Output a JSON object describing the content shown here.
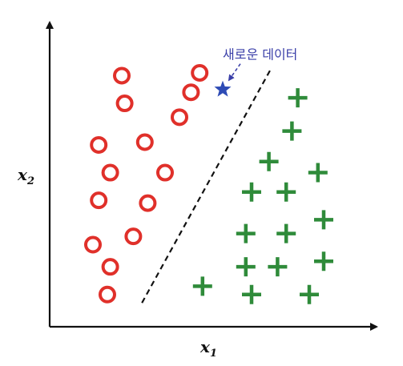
{
  "chart_data": {
    "type": "scatter",
    "xlabel": "x",
    "xlabel_sub": "1",
    "ylabel": "x",
    "ylabel_sub": "2",
    "xlim": [
      0,
      100
    ],
    "ylim": [
      0,
      100
    ],
    "grid": false,
    "series": [
      {
        "marker": "circle",
        "color": "#e0302a",
        "points": [
          [
            20,
            86
          ],
          [
            47,
            87
          ],
          [
            21,
            76
          ],
          [
            44,
            80
          ],
          [
            40,
            71
          ],
          [
            28,
            62
          ],
          [
            12,
            61
          ],
          [
            16,
            51
          ],
          [
            35,
            51
          ],
          [
            12,
            41
          ],
          [
            29,
            40
          ],
          [
            24,
            28
          ],
          [
            10,
            25
          ],
          [
            16,
            17
          ],
          [
            15,
            7
          ]
        ]
      },
      {
        "marker": "plus",
        "color": "#2f8b3a",
        "points": [
          [
            81,
            78
          ],
          [
            79,
            66
          ],
          [
            71,
            55
          ],
          [
            88,
            51
          ],
          [
            65,
            44
          ],
          [
            77,
            44
          ],
          [
            90,
            34
          ],
          [
            63,
            29
          ],
          [
            77,
            29
          ],
          [
            63,
            17
          ],
          [
            74,
            17
          ],
          [
            90,
            19
          ],
          [
            48,
            10
          ],
          [
            65,
            7
          ],
          [
            85,
            7
          ]
        ]
      },
      {
        "marker": "star",
        "color": "#2e4bb5",
        "points": [
          [
            55,
            81
          ]
        ]
      }
    ],
    "decision_boundary": {
      "style": "dashed",
      "color": "#111111",
      "from": [
        27,
        4
      ],
      "to": [
        72,
        89
      ]
    },
    "annotations": [
      {
        "text": "새로운 데이터",
        "color": "#3a3fa8",
        "point": [
          55,
          81
        ],
        "text_at": [
          55,
          92
        ]
      }
    ]
  }
}
